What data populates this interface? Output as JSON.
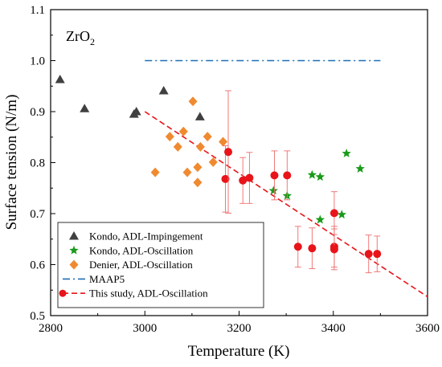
{
  "chart_data": {
    "type": "scatter",
    "label": "ZrO",
    "label_subscript": "2",
    "xlabel": "Temperature (K)",
    "ylabel": "Surface tension (N/m)",
    "xlim": [
      2800,
      3600
    ],
    "ylim": [
      0.5,
      1.1
    ],
    "x_ticks": [
      2800,
      3000,
      3200,
      3400,
      3600
    ],
    "x_tick_labels": [
      "2800",
      "3000",
      "3200",
      "3400",
      "3600"
    ],
    "y_ticks": [
      0.5,
      0.6,
      0.7,
      0.8,
      0.9,
      1.0,
      1.1
    ],
    "y_tick_labels": [
      "0.5",
      "0.6",
      "0.7",
      "0.8",
      "0.9",
      "1.0",
      "1.1"
    ],
    "grid": false,
    "legend_position": "bottom-left",
    "series": [
      {
        "name": "Kondo, ADL-Impingement",
        "marker": "triangle",
        "color": "#404040",
        "points": [
          [
            2820,
            0.963
          ],
          [
            2872,
            0.906
          ],
          [
            2977,
            0.895
          ],
          [
            2982,
            0.9
          ],
          [
            3040,
            0.941
          ],
          [
            3117,
            0.89
          ]
        ]
      },
      {
        "name": "Kondo, ADL-Oscillation",
        "marker": "star",
        "color": "#1a9a1a",
        "points": [
          [
            3273,
            0.745
          ],
          [
            3302,
            0.735
          ],
          [
            3355,
            0.776
          ],
          [
            3372,
            0.772
          ],
          [
            3372,
            0.688
          ],
          [
            3418,
            0.698
          ],
          [
            3428,
            0.818
          ],
          [
            3457,
            0.788
          ]
        ]
      },
      {
        "name": "Denier, ADL-Oscillation",
        "marker": "diamond",
        "color": "#f08a30",
        "points": [
          [
            3022,
            0.781
          ],
          [
            3053,
            0.851
          ],
          [
            3070,
            0.831
          ],
          [
            3082,
            0.861
          ],
          [
            3090,
            0.781
          ],
          [
            3102,
            0.92
          ],
          [
            3112,
            0.791
          ],
          [
            3112,
            0.761
          ],
          [
            3118,
            0.831
          ],
          [
            3133,
            0.851
          ],
          [
            3145,
            0.801
          ],
          [
            3166,
            0.841
          ]
        ]
      },
      {
        "name": "MAAP5",
        "type": "line",
        "dash": "dash-dot",
        "color": "#1f6eb5",
        "points": [
          [
            3000,
            1.0
          ],
          [
            3500,
            1.0
          ]
        ]
      },
      {
        "name": "This study, ADL-Oscillation",
        "marker": "circle",
        "color": "#e8141a",
        "error_bars": true,
        "points": [
          [
            3171,
            0.768,
            0.065
          ],
          [
            3177,
            0.821,
            0.12
          ],
          [
            3208,
            0.765,
            0.045
          ],
          [
            3222,
            0.77,
            0.05
          ],
          [
            3275,
            0.775,
            0.048
          ],
          [
            3302,
            0.775,
            0.048
          ],
          [
            3325,
            0.635,
            0.04
          ],
          [
            3355,
            0.632,
            0.04
          ],
          [
            3402,
            0.701,
            0.042
          ],
          [
            3402,
            0.635,
            0.04
          ],
          [
            3402,
            0.63,
            0.04
          ],
          [
            3475,
            0.621,
            0.037
          ],
          [
            3493,
            0.621,
            0.035
          ]
        ]
      },
      {
        "name": "",
        "type": "fit-line",
        "dash": "dashed",
        "color": "#e8141a",
        "points": [
          [
            3000,
            0.9
          ],
          [
            3600,
            0.537
          ]
        ]
      }
    ],
    "legend_entries": [
      "Kondo, ADL-Impingement",
      "Kondo, ADL-Oscillation",
      "Denier, ADL-Oscillation",
      "MAAP5",
      "This study, ADL-Oscillation"
    ]
  }
}
